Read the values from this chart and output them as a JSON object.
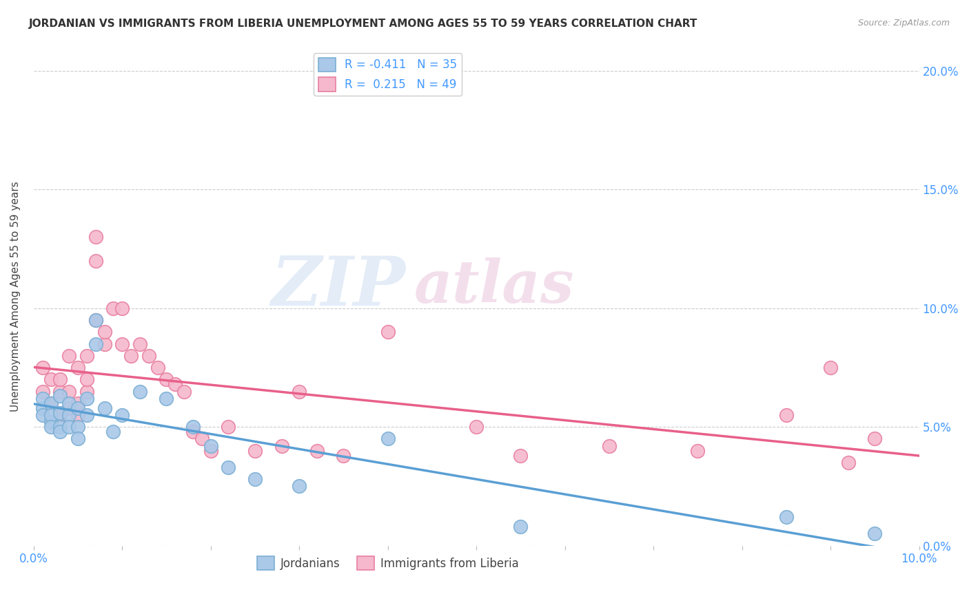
{
  "title": "JORDANIAN VS IMMIGRANTS FROM LIBERIA UNEMPLOYMENT AMONG AGES 55 TO 59 YEARS CORRELATION CHART",
  "source": "Source: ZipAtlas.com",
  "ylabel": "Unemployment Among Ages 55 to 59 years",
  "xlim": [
    0.0,
    0.1
  ],
  "ylim": [
    0.0,
    0.21
  ],
  "x_ticks_show": [
    0.0,
    0.1
  ],
  "x_ticks_minor": [
    0.01,
    0.02,
    0.03,
    0.04,
    0.05,
    0.06,
    0.07,
    0.08,
    0.09
  ],
  "y_ticks": [
    0.0,
    0.05,
    0.1,
    0.15,
    0.2
  ],
  "jordanian_color": "#aac8e8",
  "liberia_color": "#f5b8cc",
  "jordanian_edge_color": "#7bafd4",
  "liberia_edge_color": "#e87fa0",
  "jordanian_line_color": "#5a9fd4",
  "liberia_line_color": "#e8608a",
  "legend_jordanian_label": "Jordanians",
  "legend_liberia_label": "Immigrants from Liberia",
  "R_jordanian": -0.411,
  "N_jordanian": 35,
  "R_liberia": 0.215,
  "N_liberia": 49,
  "watermark_zip": "ZIP",
  "watermark_atlas": "atlas",
  "tick_color": "#4499ff",
  "jordanian_x": [
    0.001,
    0.001,
    0.001,
    0.002,
    0.002,
    0.002,
    0.002,
    0.003,
    0.003,
    0.003,
    0.003,
    0.004,
    0.004,
    0.004,
    0.005,
    0.005,
    0.005,
    0.006,
    0.006,
    0.007,
    0.007,
    0.008,
    0.009,
    0.01,
    0.012,
    0.015,
    0.018,
    0.02,
    0.022,
    0.025,
    0.03,
    0.04,
    0.055,
    0.085,
    0.095
  ],
  "jordanian_y": [
    0.058,
    0.062,
    0.055,
    0.052,
    0.06,
    0.055,
    0.05,
    0.056,
    0.063,
    0.05,
    0.048,
    0.06,
    0.055,
    0.05,
    0.058,
    0.05,
    0.045,
    0.062,
    0.055,
    0.095,
    0.085,
    0.058,
    0.048,
    0.055,
    0.065,
    0.062,
    0.05,
    0.042,
    0.033,
    0.028,
    0.025,
    0.045,
    0.008,
    0.012,
    0.005
  ],
  "liberia_x": [
    0.001,
    0.001,
    0.002,
    0.002,
    0.003,
    0.003,
    0.003,
    0.004,
    0.004,
    0.004,
    0.005,
    0.005,
    0.005,
    0.006,
    0.006,
    0.006,
    0.007,
    0.007,
    0.007,
    0.008,
    0.008,
    0.009,
    0.01,
    0.01,
    0.011,
    0.012,
    0.013,
    0.014,
    0.015,
    0.016,
    0.017,
    0.018,
    0.019,
    0.02,
    0.022,
    0.025,
    0.028,
    0.03,
    0.032,
    0.035,
    0.04,
    0.05,
    0.055,
    0.065,
    0.075,
    0.085,
    0.09,
    0.092,
    0.095
  ],
  "liberia_y": [
    0.065,
    0.075,
    0.06,
    0.07,
    0.055,
    0.065,
    0.07,
    0.058,
    0.065,
    0.08,
    0.055,
    0.06,
    0.075,
    0.065,
    0.07,
    0.08,
    0.13,
    0.12,
    0.095,
    0.085,
    0.09,
    0.1,
    0.085,
    0.1,
    0.08,
    0.085,
    0.08,
    0.075,
    0.07,
    0.068,
    0.065,
    0.048,
    0.045,
    0.04,
    0.05,
    0.04,
    0.042,
    0.065,
    0.04,
    0.038,
    0.09,
    0.05,
    0.038,
    0.042,
    0.04,
    0.055,
    0.075,
    0.035,
    0.045
  ]
}
